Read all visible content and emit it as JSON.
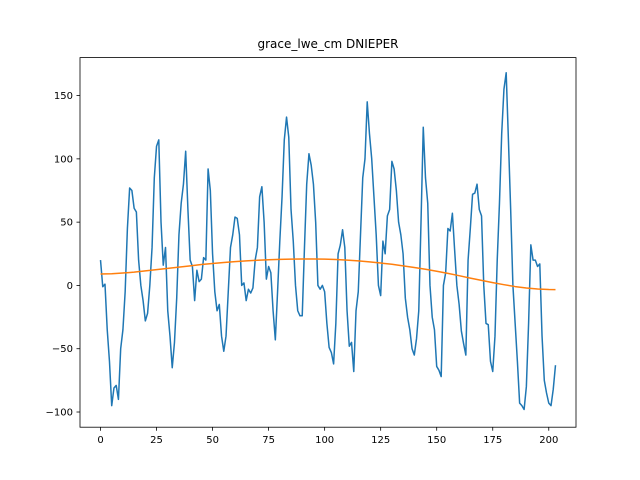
{
  "chart_data": {
    "type": "line",
    "title": "grace_lwe_cm DNIEPER",
    "xlabel": "",
    "ylabel": "",
    "xlim": [
      -9.15,
      212.15
    ],
    "ylim": [
      -112,
      180
    ],
    "xticks": [
      0,
      25,
      50,
      75,
      100,
      125,
      150,
      175,
      200
    ],
    "xtick_labels": [
      "0",
      "25",
      "50",
      "75",
      "100",
      "125",
      "150",
      "175",
      "200"
    ],
    "yticks": [
      -100,
      -50,
      0,
      50,
      100,
      150
    ],
    "ytick_labels": [
      "−100",
      "−50",
      "0",
      "50",
      "100",
      "150"
    ],
    "grid": false,
    "series": [
      {
        "color": "#1f77b4",
        "x": [
          0,
          1,
          2,
          3,
          4,
          5,
          6,
          7,
          8,
          9,
          10,
          11,
          12,
          13,
          14,
          15,
          16,
          17,
          18,
          19,
          20,
          21,
          22,
          23,
          24,
          25,
          26,
          27,
          28,
          29,
          30,
          31,
          32,
          33,
          34,
          35,
          36,
          37,
          38,
          39,
          40,
          41,
          42,
          43,
          44,
          45,
          46,
          47,
          48,
          49,
          50,
          51,
          52,
          53,
          54,
          55,
          56,
          57,
          58,
          59,
          60,
          61,
          62,
          63,
          64,
          65,
          66,
          67,
          68,
          69,
          70,
          71,
          72,
          73,
          74,
          75,
          76,
          77,
          78,
          79,
          80,
          81,
          82,
          83,
          84,
          85,
          86,
          87,
          88,
          89,
          90,
          91,
          92,
          93,
          94,
          95,
          96,
          97,
          98,
          99,
          100,
          101,
          102,
          103,
          104,
          105,
          106,
          107,
          108,
          109,
          110,
          111,
          112,
          113,
          114,
          115,
          116,
          117,
          118,
          119,
          120,
          121,
          122,
          123,
          124,
          125,
          126,
          127,
          128,
          129,
          130,
          131,
          132,
          133,
          134,
          135,
          136,
          137,
          138,
          139,
          140,
          141,
          142,
          143,
          144,
          145,
          146,
          147,
          148,
          149,
          150,
          151,
          152,
          153,
          154,
          155,
          156,
          157,
          158,
          159,
          160,
          161,
          162,
          163,
          164,
          165,
          166,
          167,
          168,
          169,
          170,
          171,
          172,
          173,
          174,
          175,
          176,
          177,
          178,
          179,
          180,
          181,
          182,
          183,
          184,
          185,
          186,
          187,
          188,
          189,
          190,
          191,
          192,
          193,
          194,
          195,
          196,
          197,
          198,
          199,
          200,
          201,
          202,
          203
        ],
        "values": [
          20,
          -1,
          1,
          -35,
          -60,
          -95,
          -81,
          -79,
          -90,
          -50,
          -35,
          -5,
          45,
          77,
          75,
          61,
          58,
          20,
          0,
          -12,
          -28,
          -22,
          0,
          30,
          85,
          110,
          115,
          50,
          16,
          30,
          -20,
          -40,
          -65,
          -45,
          -10,
          40,
          65,
          80,
          106,
          60,
          20,
          15,
          -12,
          12,
          3,
          5,
          22,
          20,
          92,
          75,
          25,
          -5,
          -20,
          -15,
          -40,
          -52,
          -40,
          -5,
          30,
          40,
          54,
          53,
          40,
          0,
          2,
          -12,
          -3,
          -6,
          -2,
          20,
          30,
          70,
          78,
          50,
          5,
          15,
          10,
          -20,
          -43,
          -5,
          35,
          70,
          115,
          133,
          117,
          60,
          35,
          0,
          -20,
          -24,
          -24,
          30,
          80,
          104,
          95,
          80,
          50,
          0,
          -3,
          0,
          -5,
          -30,
          -49,
          -53,
          -62,
          -30,
          25,
          32,
          44,
          30,
          -20,
          -48,
          -45,
          -68,
          -20,
          -5,
          40,
          85,
          100,
          145,
          120,
          100,
          70,
          40,
          0,
          -8,
          35,
          25,
          55,
          60,
          98,
          92,
          75,
          50,
          40,
          25,
          -10,
          -25,
          -35,
          -50,
          -55,
          -42,
          -20,
          50,
          125,
          85,
          65,
          0,
          -25,
          -35,
          -64,
          -67,
          -72,
          0,
          10,
          45,
          43,
          57,
          28,
          0,
          -15,
          -36,
          -46,
          -55,
          20,
          45,
          72,
          73,
          80,
          60,
          55,
          0,
          -30,
          -31,
          -60,
          -68,
          -40,
          20,
          65,
          120,
          155,
          168,
          115,
          60,
          0,
          -30,
          -60,
          -93,
          -95,
          -98,
          -80,
          -30,
          32,
          20,
          20,
          15,
          17,
          -40,
          -75,
          -85,
          -93,
          -95,
          -82,
          -63
        ]
      },
      {
        "color": "#ff7f0e",
        "x": [
          0,
          5,
          10,
          15,
          20,
          25,
          30,
          35,
          40,
          45,
          50,
          55,
          60,
          65,
          70,
          75,
          80,
          85,
          90,
          95,
          100,
          105,
          110,
          115,
          120,
          125,
          130,
          135,
          140,
          145,
          150,
          155,
          160,
          165,
          170,
          175,
          180,
          185,
          190,
          195,
          200,
          203
        ],
        "values": [
          9,
          9.2,
          9.8,
          10.5,
          11.5,
          12.5,
          13.5,
          14.5,
          15.5,
          16.5,
          17.3,
          18.1,
          18.8,
          19.4,
          19.9,
          20.3,
          20.6,
          20.8,
          20.9,
          20.9,
          20.8,
          20.5,
          20,
          19.4,
          18.6,
          17.7,
          16.7,
          15.5,
          14.2,
          12.8,
          11.2,
          9.5,
          7.7,
          5.8,
          4,
          2.2,
          0.6,
          -0.9,
          -2,
          -2.8,
          -3.2,
          -3.3
        ]
      }
    ]
  }
}
